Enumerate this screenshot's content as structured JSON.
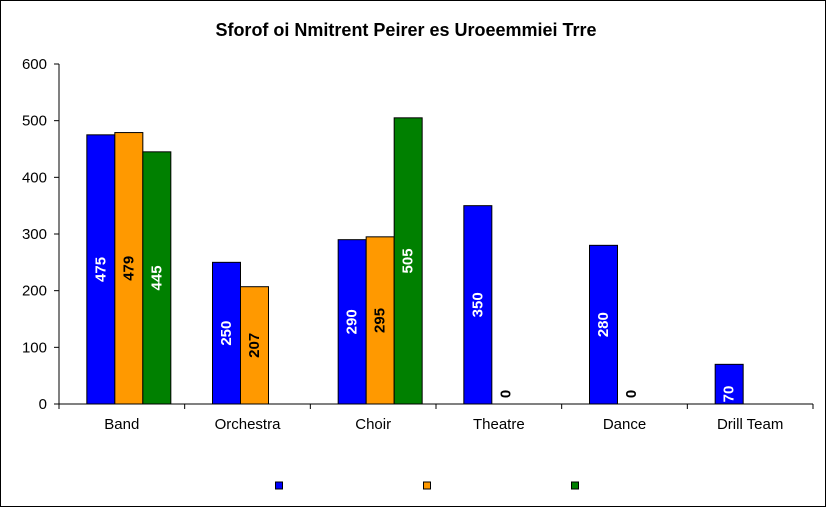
{
  "chart_data": {
    "type": "bar",
    "title": "Sforof oi Nmitrent Peirer es Uroeemmiei Trre",
    "xlabel": "",
    "ylabel": "",
    "categories": [
      "Band",
      "Orchestra",
      "Choir",
      "Theatre",
      "Dance",
      "Drill Team"
    ],
    "ylim": [
      0,
      600
    ],
    "yticks": [
      0,
      100,
      200,
      300,
      400,
      500,
      600
    ],
    "grid": false,
    "legend_position": "bottom",
    "series": [
      {
        "color": "#0000ff",
        "label_color": "#ffffff",
        "values": [
          475,
          250,
          290,
          350,
          280,
          70
        ]
      },
      {
        "color": "#ff9900",
        "label_color": "#000000",
        "values": [
          479,
          207,
          295,
          0,
          0,
          null
        ]
      },
      {
        "color": "#008000",
        "label_color": "#ffffff",
        "values": [
          445,
          null,
          505,
          null,
          null,
          null
        ]
      }
    ]
  }
}
